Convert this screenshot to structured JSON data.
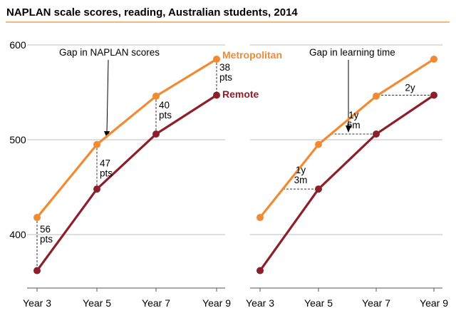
{
  "header": {
    "title": "NAPLAN scale scores, reading, Australian students, 2014"
  },
  "colors": {
    "metropolitan": "#F08A33",
    "remote": "#8C1F2A",
    "title_rule": "#F08A33",
    "grid": "#BDBDBD",
    "axis": "#555555",
    "dashed": "#333333"
  },
  "chart_data": [
    {
      "type": "line",
      "panel": "left",
      "categories": [
        "Year 3",
        "Year 5",
        "Year 7",
        "Year 9"
      ],
      "series": [
        {
          "name": "Metropolitan",
          "values": [
            418,
            495,
            546,
            585
          ]
        },
        {
          "name": "Remote",
          "values": [
            362,
            448,
            506,
            547
          ]
        }
      ],
      "ylim": [
        350,
        610
      ],
      "yticks": [
        400,
        500,
        600
      ],
      "grid": true,
      "annotation_title": "Gap in NAPLAN scores",
      "gaps": [
        {
          "category": "Year 3",
          "value": "56",
          "unit": "pts"
        },
        {
          "category": "Year 5",
          "value": "47",
          "unit": "pts"
        },
        {
          "category": "Year 7",
          "value": "40",
          "unit": "pts"
        },
        {
          "category": "Year 9",
          "value": "38",
          "unit": "pts"
        }
      ],
      "legend": [
        "Metropolitan",
        "Remote"
      ]
    },
    {
      "type": "line",
      "panel": "right",
      "categories": [
        "Year 3",
        "Year 5",
        "Year 7",
        "Year 9"
      ],
      "series": [
        {
          "name": "Metropolitan",
          "values": [
            418,
            495,
            546,
            585
          ]
        },
        {
          "name": "Remote",
          "values": [
            362,
            448,
            506,
            547
          ]
        }
      ],
      "ylim": [
        350,
        610
      ],
      "grid": true,
      "annotation_title": "Gap in learning time",
      "gaps": [
        {
          "remote_index": 1,
          "years": "1y",
          "months": "3m"
        },
        {
          "remote_index": 2,
          "years": "1y",
          "months": "6m"
        },
        {
          "remote_index": 3,
          "years": "2y",
          "months": ""
        }
      ]
    }
  ]
}
